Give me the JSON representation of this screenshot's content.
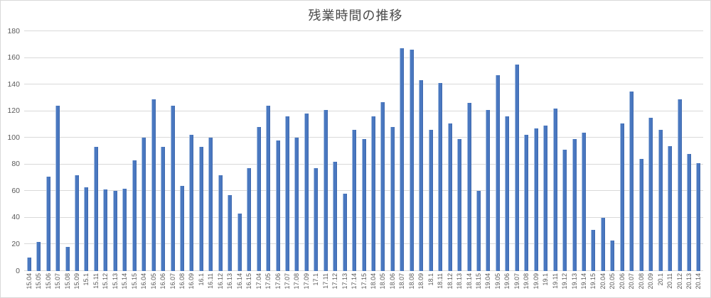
{
  "chart_data": {
    "type": "bar",
    "title": "残業時間の推移",
    "xlabel": "",
    "ylabel": "",
    "ylim": [
      0,
      180
    ],
    "yticks": [
      0,
      20,
      40,
      60,
      80,
      100,
      120,
      140,
      160,
      180
    ],
    "grid": true,
    "legend": false,
    "categories": [
      "15.04",
      "15.05",
      "15.06",
      "15.07",
      "15.08",
      "15.09",
      "15.1",
      "15.11",
      "15.12",
      "15.13",
      "15.14",
      "15.15",
      "16.04",
      "16.05",
      "16.06",
      "16.07",
      "16.08",
      "16.09",
      "16.1",
      "16.11",
      "16.12",
      "16.13",
      "16.14",
      "16.15",
      "17.04",
      "17.05",
      "17.06",
      "17.07",
      "17.08",
      "17.09",
      "17.1",
      "17.11",
      "17.12",
      "17.13",
      "17.14",
      "17.15",
      "18.04",
      "18.05",
      "18.06",
      "18.07",
      "18.08",
      "18.09",
      "18.1",
      "18.11",
      "18.12",
      "18.13",
      "18.14",
      "18.15",
      "19.04",
      "19.05",
      "19.06",
      "19.07",
      "19.08",
      "19.09",
      "19.1",
      "19.11",
      "19.12",
      "19.13",
      "19.14",
      "19.15",
      "20.04",
      "20.05",
      "20.06",
      "20.07",
      "20.08",
      "20.09",
      "20.1",
      "20.11",
      "20.12",
      "20.13",
      "20.14"
    ],
    "values": [
      10,
      22,
      71,
      124,
      18,
      72,
      63,
      93,
      61,
      60,
      62,
      83,
      100,
      129,
      93,
      124,
      64,
      102,
      93,
      100,
      72,
      57,
      43,
      77,
      108,
      124,
      98,
      116,
      100,
      118,
      77,
      121,
      82,
      58,
      106,
      99,
      116,
      127,
      108,
      167,
      166,
      143,
      106,
      141,
      111,
      99,
      126,
      60,
      121,
      147,
      116,
      155,
      102,
      107,
      109,
      122,
      91,
      99,
      104,
      31,
      40,
      23,
      111,
      135,
      84,
      115,
      106,
      94,
      129,
      88,
      81
    ],
    "colors": {
      "bar": "#4a78c0",
      "bar_highlight": "#a9c1e2",
      "bar_shadow": "#3c67ad",
      "gridline": "#d9d9d9",
      "axis_label": "#595959",
      "title": "#4a4a4a",
      "frame_border": "#d9d9d9"
    }
  }
}
